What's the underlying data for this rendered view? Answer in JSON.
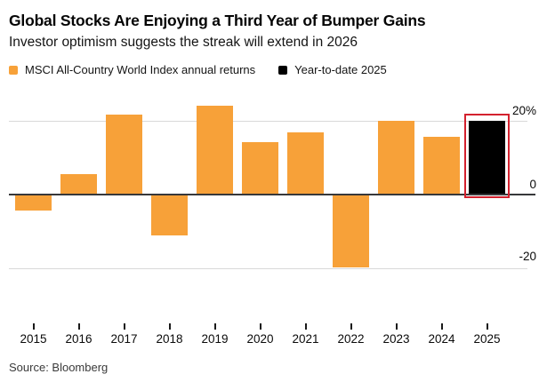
{
  "header": {
    "title": "Global Stocks Are Enjoying a Third Year of Bumper Gains",
    "subtitle": "Investor optimism suggests the streak will extend in 2026"
  },
  "legend": {
    "items": [
      {
        "label": "MSCI All-Country World Index annual returns",
        "color": "#F7A139"
      },
      {
        "label": "Year-to-date 2025",
        "color": "#000000"
      }
    ]
  },
  "chart_data": {
    "type": "bar",
    "title": "Global Stocks Are Enjoying a Third Year of Bumper Gains",
    "subtitle": "Investor optimism suggests the streak will extend in 2026",
    "categories": [
      "2015",
      "2016",
      "2017",
      "2018",
      "2019",
      "2020",
      "2021",
      "2022",
      "2023",
      "2024",
      "2025"
    ],
    "series": [
      {
        "name": "MSCI All-Country World Index annual returns",
        "color": "#F7A139",
        "values": [
          -4.3,
          5.6,
          21.6,
          -11.2,
          24.0,
          14.3,
          16.8,
          -19.8,
          20.1,
          15.7,
          null
        ]
      },
      {
        "name": "Year-to-date 2025",
        "color": "#000000",
        "values": [
          null,
          null,
          null,
          null,
          null,
          null,
          null,
          null,
          null,
          null,
          19.9
        ]
      }
    ],
    "y_axis": {
      "tick_labels": [
        "20%",
        "0",
        "-20"
      ],
      "tick_values": [
        20,
        0,
        -20
      ],
      "ylim": [
        -24,
        26
      ],
      "side": "right",
      "grid": true
    },
    "highlight": {
      "category": "2025",
      "box_color": "#D3212E"
    },
    "colors": {
      "gridline": "#D8D8D8",
      "zero_line": "#37383A",
      "background": "#FFFFFF"
    }
  },
  "source": "Source: Bloomberg"
}
